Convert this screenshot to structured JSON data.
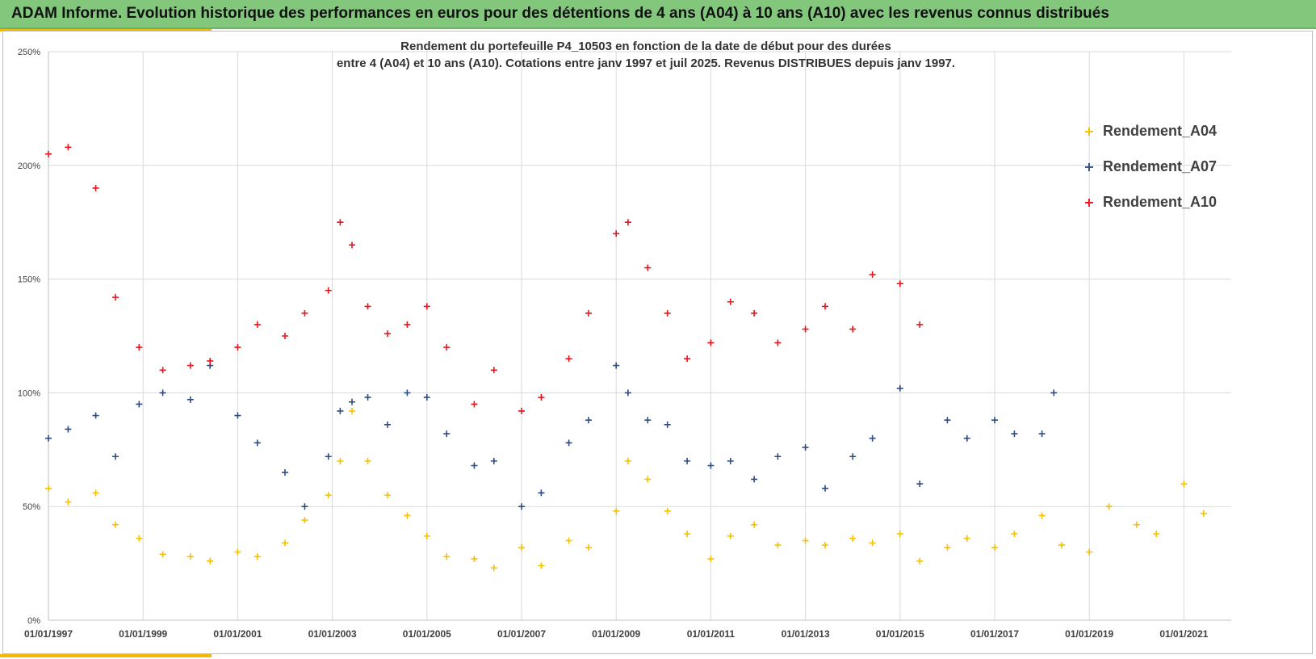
{
  "banner": {
    "title": "ADAM Informe. Evolution historique des performances en euros pour des détentions de 4 ans (A04) à 10 ans (A10) avec les revenus connus distribués"
  },
  "colors": {
    "banner": "#82c77b",
    "accent": "#f5b800",
    "a04": "#f5c000",
    "a07": "#2f4c7e",
    "a10": "#e8141c"
  },
  "chart_data": {
    "type": "scatter",
    "title": "Rendement du portefeuille P4_10503 en fonction de la date de début pour des durées",
    "subtitle": "entre 4 (A04) et 10 ans (A10). Cotations entre janv 1997 et juil 2025. Revenus DISTRIBUES depuis janv 1997.",
    "x_type": "date",
    "xlim": [
      "1997-01-01",
      "2022-01-01"
    ],
    "ylim": [
      0,
      2.5
    ],
    "y_format": "percent",
    "x_ticks": [
      "01/01/1997",
      "01/01/1999",
      "01/01/2001",
      "01/01/2003",
      "01/01/2005",
      "01/01/2007",
      "01/01/2009",
      "01/01/2011",
      "01/01/2013",
      "01/01/2015",
      "01/01/2017",
      "01/01/2019",
      "01/01/2021"
    ],
    "y_ticks": [
      "0%",
      "50%",
      "100%",
      "150%",
      "200%",
      "250%"
    ],
    "grid": true,
    "legend_position": "top-right",
    "series": [
      {
        "name": "Rendement_A04",
        "color": "#f5c000",
        "x": [
          "1997-01",
          "1997-06",
          "1998-01",
          "1998-06",
          "1998-12",
          "1999-06",
          "2000-01",
          "2000-06",
          "2001-01",
          "2001-06",
          "2002-01",
          "2002-06",
          "2002-12",
          "2003-03",
          "2003-06",
          "2003-10",
          "2004-03",
          "2004-08",
          "2005-01",
          "2005-06",
          "2006-01",
          "2006-06",
          "2007-01",
          "2007-06",
          "2008-01",
          "2008-06",
          "2009-01",
          "2009-04",
          "2009-09",
          "2010-02",
          "2010-07",
          "2011-01",
          "2011-06",
          "2011-12",
          "2012-06",
          "2013-01",
          "2013-06",
          "2014-01",
          "2014-06",
          "2015-01",
          "2015-06",
          "2016-01",
          "2016-06",
          "2017-01",
          "2017-06",
          "2018-01",
          "2018-06",
          "2019-01",
          "2019-06",
          "2020-01",
          "2020-06",
          "2021-01",
          "2021-06"
        ],
        "values": [
          0.58,
          0.52,
          0.56,
          0.42,
          0.36,
          0.29,
          0.28,
          0.26,
          0.3,
          0.28,
          0.34,
          0.44,
          0.55,
          0.7,
          0.92,
          0.7,
          0.55,
          0.46,
          0.37,
          0.28,
          0.27,
          0.23,
          0.32,
          0.24,
          0.35,
          0.32,
          0.48,
          0.7,
          0.62,
          0.48,
          0.38,
          0.27,
          0.37,
          0.42,
          0.33,
          0.35,
          0.33,
          0.36,
          0.34,
          0.38,
          0.26,
          0.32,
          0.36,
          0.32,
          0.38,
          0.46,
          0.33,
          0.3,
          0.5,
          0.42,
          0.38,
          0.6,
          0.47
        ]
      },
      {
        "name": "Rendement_A07",
        "color": "#2f4c7e",
        "x": [
          "1997-01",
          "1997-06",
          "1998-01",
          "1998-06",
          "1998-12",
          "1999-06",
          "2000-01",
          "2000-06",
          "2001-01",
          "2001-06",
          "2002-01",
          "2002-06",
          "2002-12",
          "2003-03",
          "2003-06",
          "2003-10",
          "2004-03",
          "2004-08",
          "2005-01",
          "2005-06",
          "2006-01",
          "2006-06",
          "2007-01",
          "2007-06",
          "2008-01",
          "2008-06",
          "2009-01",
          "2009-04",
          "2009-09",
          "2010-02",
          "2010-07",
          "2011-01",
          "2011-06",
          "2011-12",
          "2012-06",
          "2013-01",
          "2013-06",
          "2014-01",
          "2014-06",
          "2015-01",
          "2015-06",
          "2016-01",
          "2016-06",
          "2017-01",
          "2017-06",
          "2018-01",
          "2018-04"
        ],
        "values": [
          0.8,
          0.84,
          0.9,
          0.72,
          0.95,
          1.0,
          0.97,
          1.12,
          0.9,
          0.78,
          0.65,
          0.5,
          0.72,
          0.92,
          0.96,
          0.98,
          0.86,
          1.0,
          0.98,
          0.82,
          0.68,
          0.7,
          0.5,
          0.56,
          0.78,
          0.88,
          1.12,
          1.0,
          0.88,
          0.86,
          0.7,
          0.68,
          0.7,
          0.62,
          0.72,
          0.76,
          0.58,
          0.72,
          0.8,
          1.02,
          0.6,
          0.88,
          0.8,
          0.88,
          0.82,
          0.82,
          1.0
        ]
      },
      {
        "name": "Rendement_A10",
        "color": "#e8141c",
        "x": [
          "1997-01",
          "1997-06",
          "1998-01",
          "1998-06",
          "1998-12",
          "1999-06",
          "2000-01",
          "2000-06",
          "2001-01",
          "2001-06",
          "2002-01",
          "2002-06",
          "2002-12",
          "2003-03",
          "2003-06",
          "2003-10",
          "2004-03",
          "2004-08",
          "2005-01",
          "2005-06",
          "2006-01",
          "2006-06",
          "2007-01",
          "2007-06",
          "2008-01",
          "2008-06",
          "2009-01",
          "2009-04",
          "2009-09",
          "2010-02",
          "2010-07",
          "2011-01",
          "2011-06",
          "2011-12",
          "2012-06",
          "2013-01",
          "2013-06",
          "2014-01",
          "2014-06",
          "2015-01",
          "2015-06"
        ],
        "values": [
          2.05,
          2.08,
          1.9,
          1.42,
          1.2,
          1.1,
          1.12,
          1.14,
          1.2,
          1.3,
          1.25,
          1.35,
          1.45,
          1.75,
          1.65,
          1.38,
          1.26,
          1.3,
          1.38,
          1.2,
          0.95,
          1.1,
          0.92,
          0.98,
          1.15,
          1.35,
          1.7,
          1.75,
          1.55,
          1.35,
          1.15,
          1.22,
          1.4,
          1.35,
          1.22,
          1.28,
          1.38,
          1.28,
          1.52,
          1.48,
          1.3
        ]
      }
    ]
  }
}
